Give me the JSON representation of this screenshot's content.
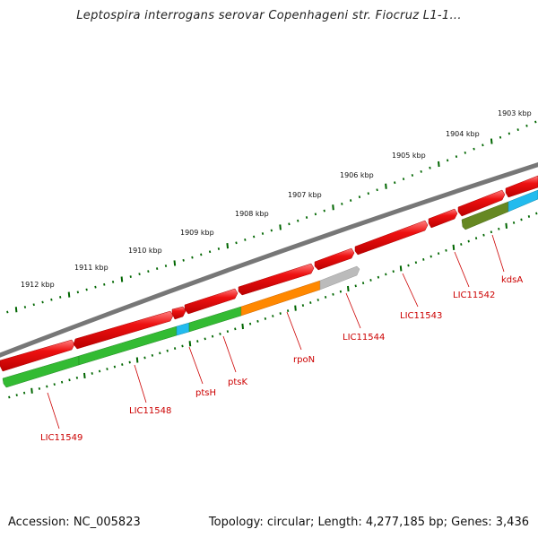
{
  "title": "Leptospira interrogans serovar Copenhageni str. Fiocruz L1-1...",
  "accession_label": "Accession: NC_005823",
  "topology_label": "Topology: circular; Length: 4,277,185 bp; Genes: 3,436",
  "scale_labels": [
    "1903 kbp",
    "1904 kbp",
    "1905 kbp",
    "1906 kbp",
    "1907 kbp",
    "1908 kbp",
    "1909 kbp",
    "1910 kbp",
    "1911 kbp",
    "1912 kbp"
  ],
  "gene_labels": [
    "kdsA",
    "LIC11542",
    "LIC11543",
    "LIC11544",
    "rpoN",
    "ptsK",
    "ptsH",
    "LIC11548",
    "LIC11549"
  ],
  "colors": {
    "forward_gene": "#ee1111",
    "reverse_gene_green": "#33bb33",
    "reverse_gene_orange": "#ff8800",
    "reverse_gene_gray": "#bbbbbb",
    "reverse_gene_cyan": "#22bbee",
    "reverse_gene_olive": "#668822",
    "backbone": "#777777",
    "tick": "#006600",
    "label": "#cc0000"
  }
}
